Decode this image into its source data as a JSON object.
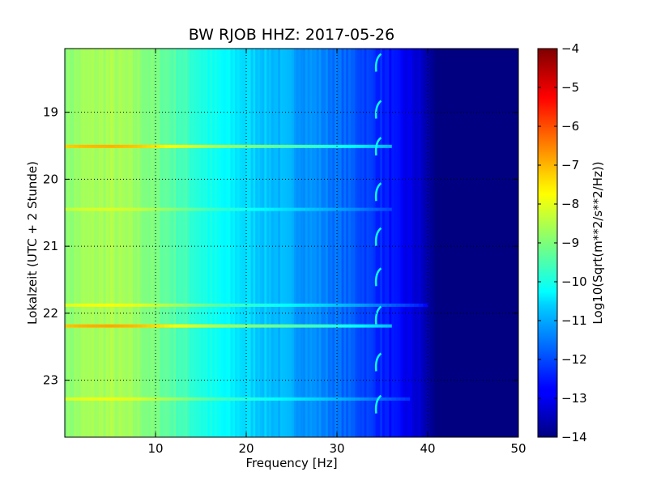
{
  "chart_data": {
    "type": "heatmap",
    "title": "BW RJOB HHZ: 2017-05-26",
    "xlabel": "Frequency [Hz]",
    "ylabel": "Lokalzeit (UTC + 2 Stunde)",
    "xlim": [
      0,
      50
    ],
    "ylim": [
      23.85,
      18.05
    ],
    "x_ticks": [
      10,
      20,
      30,
      40,
      50
    ],
    "x_tick_labels": [
      "10",
      "20",
      "30",
      "40",
      "50"
    ],
    "y_ticks": [
      19,
      20,
      21,
      22,
      23
    ],
    "y_tick_labels": [
      "19",
      "20",
      "21",
      "22",
      "23"
    ],
    "grid": true,
    "grid_style": "dotted",
    "colormap": "jet",
    "colorbar": {
      "label": "Log10(Sqrt(m**2/s**2/Hz))",
      "range": [
        -14,
        -4
      ],
      "ticks": [
        -4,
        -5,
        -6,
        -7,
        -8,
        -9,
        -10,
        -11,
        -12,
        -13,
        -14
      ],
      "tick_labels": [
        "−4",
        "−5",
        "−6",
        "−7",
        "−8",
        "−9",
        "−10",
        "−11",
        "−12",
        "−13",
        "−14"
      ]
    },
    "spectral_profile": {
      "frequency_hz": [
        0,
        2,
        5,
        8,
        12,
        16,
        20,
        24,
        28,
        32,
        36,
        39,
        41,
        50
      ],
      "level": [
        -8.9,
        -8.7,
        -8.6,
        -8.8,
        -9.4,
        -10.1,
        -10.6,
        -11.0,
        -11.4,
        -11.9,
        -12.6,
        -13.2,
        -14.0,
        -14.0
      ]
    },
    "horizontal_bands": [
      {
        "time": 19.51,
        "level_boost": 1.6,
        "fmax_hz": 36
      },
      {
        "time": 22.19,
        "level_boost": 1.7,
        "fmax_hz": 36
      },
      {
        "time": 21.88,
        "level_boost": 0.8,
        "fmax_hz": 40
      },
      {
        "time": 23.28,
        "level_boost": 0.7,
        "fmax_hz": 38
      },
      {
        "time": 20.45,
        "level_boost": 0.5,
        "fmax_hz": 36
      }
    ],
    "tonal_marks": {
      "frequency_hz": 34.5,
      "times": [
        18.25,
        18.95,
        19.5,
        20.18,
        20.85,
        21.45,
        22.02,
        22.72,
        23.35
      ]
    }
  }
}
